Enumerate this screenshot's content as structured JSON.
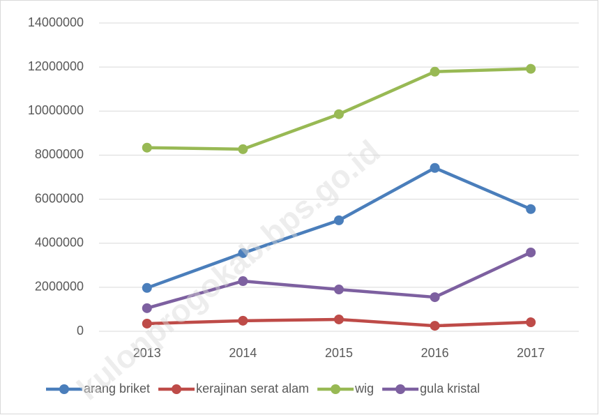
{
  "chart_data": {
    "type": "line",
    "watermark": "kulonprogokab.bps.go.id",
    "categories": [
      "2013",
      "2014",
      "2015",
      "2016",
      "2017"
    ],
    "series": [
      {
        "name": "arang briket",
        "color": "#4a7ebb",
        "values": [
          1970000,
          3550000,
          5040000,
          7420000,
          5550000
        ]
      },
      {
        "name": "kerajinan serat alam",
        "color": "#be4b48",
        "values": [
          350000,
          480000,
          540000,
          250000,
          410000
        ]
      },
      {
        "name": "wig",
        "color": "#98b954",
        "values": [
          8340000,
          8270000,
          9860000,
          11790000,
          11920000
        ]
      },
      {
        "name": "gula kristal",
        "color": "#7d60a0",
        "values": [
          1050000,
          2280000,
          1900000,
          1550000,
          3580000
        ]
      }
    ],
    "ylim": [
      0,
      14000000
    ],
    "yticks": [
      0,
      2000000,
      4000000,
      6000000,
      8000000,
      10000000,
      12000000,
      14000000
    ],
    "grid": true,
    "legend": "bottom"
  }
}
